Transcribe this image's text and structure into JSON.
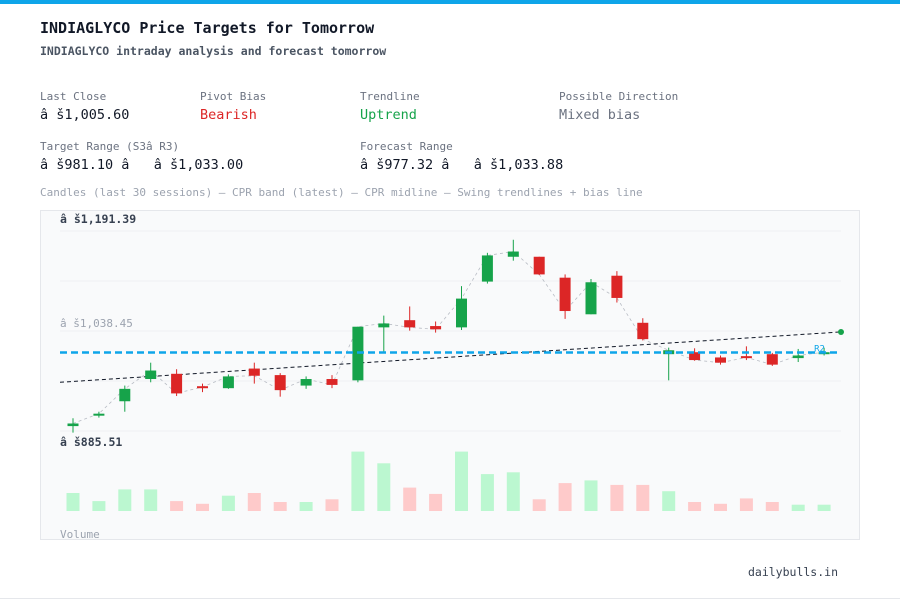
{
  "header": {
    "title": "INDIAGLYCO Price Targets for Tomorrow",
    "subtitle": "INDIAGLYCO intraday analysis and forecast tomorrow"
  },
  "stats": {
    "last_close_label": "Last Close",
    "last_close_value": "â š1,005.60",
    "pivot_bias_label": "Pivot Bias",
    "pivot_bias_value": "Bearish",
    "trendline_label": "Trendline",
    "trendline_value": "Uptrend",
    "direction_label": "Possible Direction",
    "direction_value": "Mixed bias",
    "target_range_label": "Target Range (S3â  R3)",
    "target_range_value": "â š981.10 â   â š1,033.00",
    "forecast_range_label": "Forecast Range",
    "forecast_range_value": "â š977.32 â   â š1,033.88"
  },
  "legend_text": "Candles (last 30 sessions) — CPR band (latest) — CPR midline — Swing trendlines + bias line",
  "footer": "dailybulls.in",
  "colors": {
    "bull": "#16a34a",
    "bear": "#dc2626",
    "bull_volume": "#bbf7d0",
    "bear_volume": "#fecaca",
    "cpr": "#0ea5e9",
    "accent": "#0ea5e9"
  },
  "chart_data": {
    "type": "candlestick",
    "price_labels": {
      "top": "â š1,191.39",
      "mid": "â š1,038.45",
      "bottom": "â š885.51"
    },
    "volume_label": "Volume",
    "y_range": [
      885.51,
      1191.39
    ],
    "cpr_level": 1005.6,
    "cpr_tag": "R2",
    "candles": [
      {
        "open": 893,
        "close": 897,
        "high": 905,
        "low": 883
      },
      {
        "open": 909,
        "close": 912,
        "high": 915,
        "low": 906
      },
      {
        "open": 931,
        "close": 950,
        "high": 955,
        "low": 915
      },
      {
        "open": 965,
        "close": 978,
        "high": 990,
        "low": 960
      },
      {
        "open": 973,
        "close": 943,
        "high": 980,
        "low": 939
      },
      {
        "open": 954,
        "close": 953,
        "high": 958,
        "low": 945
      },
      {
        "open": 951,
        "close": 969,
        "high": 972,
        "low": 950
      },
      {
        "open": 981,
        "close": 970,
        "high": 990,
        "low": 958
      },
      {
        "open": 971,
        "close": 948,
        "high": 974,
        "low": 938
      },
      {
        "open": 955,
        "close": 965,
        "high": 969,
        "low": 950
      },
      {
        "open": 965,
        "close": 956,
        "high": 971,
        "low": 951
      },
      {
        "open": 963,
        "close": 1045,
        "high": 1045,
        "low": 960
      },
      {
        "open": 1044,
        "close": 1050,
        "high": 1062,
        "low": 1007
      },
      {
        "open": 1055,
        "close": 1044,
        "high": 1076,
        "low": 1039
      },
      {
        "open": 1046,
        "close": 1041,
        "high": 1053,
        "low": 1036
      },
      {
        "open": 1044,
        "close": 1088,
        "high": 1107,
        "low": 1040
      },
      {
        "open": 1114,
        "close": 1154,
        "high": 1158,
        "low": 1111
      },
      {
        "open": 1152,
        "close": 1160,
        "high": 1178,
        "low": 1146
      },
      {
        "open": 1152,
        "close": 1125,
        "high": 1152,
        "low": 1124
      },
      {
        "open": 1120,
        "close": 1069,
        "high": 1125,
        "low": 1057
      },
      {
        "open": 1064,
        "close": 1113,
        "high": 1118,
        "low": 1064
      },
      {
        "open": 1123,
        "close": 1089,
        "high": 1130,
        "low": 1082
      },
      {
        "open": 1051,
        "close": 1026,
        "high": 1058,
        "low": 1024
      },
      {
        "open": 1003,
        "close": 1009,
        "high": 1013,
        "low": 963
      },
      {
        "open": 1006,
        "close": 994,
        "high": 1012,
        "low": 993
      },
      {
        "open": 998,
        "close": 990,
        "high": 1001,
        "low": 987
      },
      {
        "open": 1000,
        "close": 998,
        "high": 1015,
        "low": 994
      },
      {
        "open": 1003,
        "close": 987,
        "high": 1005,
        "low": 985
      },
      {
        "open": 997,
        "close": 1001,
        "high": 1011,
        "low": 991
      },
      {
        "open": 1005,
        "close": 1006,
        "high": 1013,
        "low": 1001
      }
    ],
    "volume": [
      0.2,
      0.11,
      0.24,
      0.24,
      0.11,
      0.08,
      0.17,
      0.2,
      0.1,
      0.1,
      0.13,
      0.66,
      0.53,
      0.26,
      0.19,
      0.66,
      0.41,
      0.43,
      0.13,
      0.31,
      0.34,
      0.29,
      0.29,
      0.22,
      0.1,
      0.08,
      0.14,
      0.1,
      0.07,
      0.07
    ],
    "trendline": {
      "start": 960,
      "end": 1037
    },
    "bias_line_points": [
      [
        24,
        1003
      ],
      [
        29,
        1037
      ]
    ]
  }
}
